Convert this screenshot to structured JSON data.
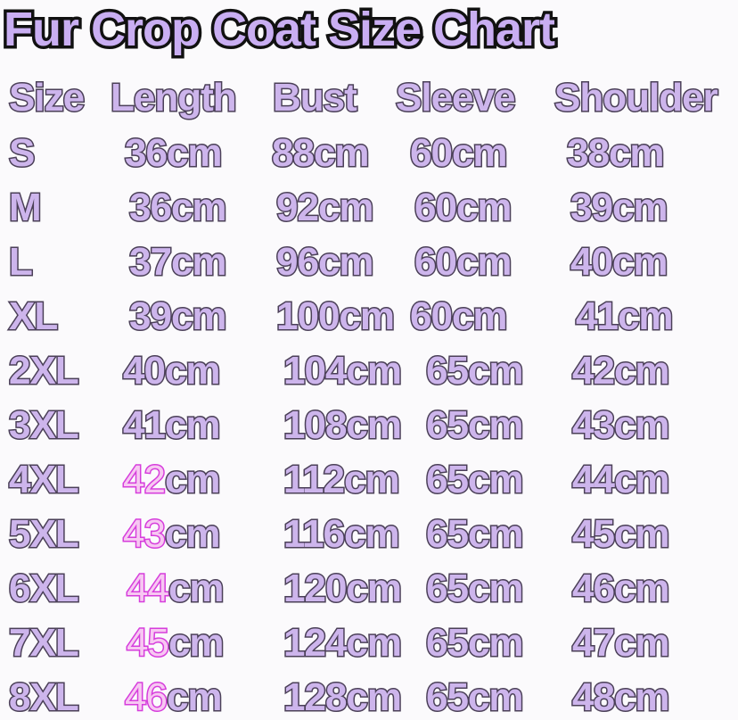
{
  "title": "Fur Crop Coat Size Chart",
  "colors": {
    "fill": "#cdb5ec",
    "outline": "#4b4058",
    "highlight_fill": "#f7c8f2",
    "highlight_outline": "#d63ddc",
    "background": "#fbfafc"
  },
  "headers": [
    "Size",
    "Length",
    "Bust",
    "Sleeve",
    "Shoulder"
  ],
  "unit": "cm",
  "rows": [
    {
      "size": "S",
      "length": "36",
      "bust": "88cm",
      "sleeve": "60cm",
      "shoulder": "38cm",
      "highlight": false
    },
    {
      "size": "M",
      "length": "36",
      "bust": "92cm",
      "sleeve": "60cm",
      "shoulder": "39cm",
      "highlight": false
    },
    {
      "size": "L",
      "length": "37",
      "bust": "96cm",
      "sleeve": "60cm",
      "shoulder": "40cm",
      "highlight": false
    },
    {
      "size": "XL",
      "length": "39",
      "bust": "100cm",
      "sleeve": "60cm",
      "shoulder": "41cm",
      "highlight": false
    },
    {
      "size": "2XL",
      "length": "40",
      "bust": "104cm",
      "sleeve": "65cm",
      "shoulder": "42cm",
      "highlight": false
    },
    {
      "size": "3XL",
      "length": "41",
      "bust": "108cm",
      "sleeve": "65cm",
      "shoulder": "43cm",
      "highlight": false
    },
    {
      "size": "4XL",
      "length": "42",
      "bust": "112cm",
      "sleeve": "65cm",
      "shoulder": "44cm",
      "highlight": true
    },
    {
      "size": "5XL",
      "length": "43",
      "bust": "116cm",
      "sleeve": "65cm",
      "shoulder": "45cm",
      "highlight": true
    },
    {
      "size": "6XL",
      "length": "44",
      "bust": "120cm",
      "sleeve": "65cm",
      "shoulder": "46cm",
      "highlight": true
    },
    {
      "size": "7XL",
      "length": "45",
      "bust": "124cm",
      "sleeve": "65cm",
      "shoulder": "47cm",
      "highlight": true
    },
    {
      "size": "8XL",
      "length": "46",
      "bust": "128cm",
      "sleeve": "65cm",
      "shoulder": "48cm",
      "highlight": true
    }
  ]
}
